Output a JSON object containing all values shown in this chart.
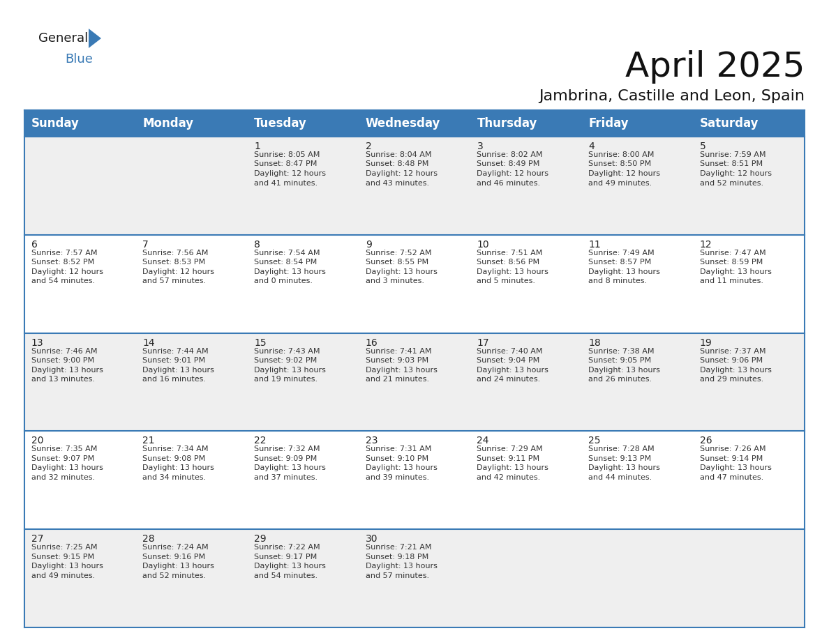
{
  "title": "April 2025",
  "subtitle": "Jambrina, Castille and Leon, Spain",
  "header_color": "#3a7ab5",
  "header_text_color": "#ffffff",
  "cell_bg_row0": "#efefef",
  "cell_bg_row1": "#ffffff",
  "cell_bg_row2": "#efefef",
  "cell_bg_row3": "#ffffff",
  "cell_bg_row4": "#efefef",
  "separator_color": "#3a7ab5",
  "day_headers": [
    "Sunday",
    "Monday",
    "Tuesday",
    "Wednesday",
    "Thursday",
    "Friday",
    "Saturday"
  ],
  "title_fontsize": 36,
  "subtitle_fontsize": 16,
  "header_fontsize": 12,
  "cell_fontsize": 8.0,
  "day_num_fontsize": 10,
  "background_color": "#ffffff",
  "text_color": "#333333",
  "days": [
    {
      "day": null,
      "col": 0,
      "row": 0,
      "sunrise": null,
      "sunset": null,
      "daylight": null
    },
    {
      "day": null,
      "col": 1,
      "row": 0,
      "sunrise": null,
      "sunset": null,
      "daylight": null
    },
    {
      "day": 1,
      "col": 2,
      "row": 0,
      "sunrise": "8:05 AM",
      "sunset": "8:47 PM",
      "daylight": "12 hours and 41 minutes."
    },
    {
      "day": 2,
      "col": 3,
      "row": 0,
      "sunrise": "8:04 AM",
      "sunset": "8:48 PM",
      "daylight": "12 hours and 43 minutes."
    },
    {
      "day": 3,
      "col": 4,
      "row": 0,
      "sunrise": "8:02 AM",
      "sunset": "8:49 PM",
      "daylight": "12 hours and 46 minutes."
    },
    {
      "day": 4,
      "col": 5,
      "row": 0,
      "sunrise": "8:00 AM",
      "sunset": "8:50 PM",
      "daylight": "12 hours and 49 minutes."
    },
    {
      "day": 5,
      "col": 6,
      "row": 0,
      "sunrise": "7:59 AM",
      "sunset": "8:51 PM",
      "daylight": "12 hours and 52 minutes."
    },
    {
      "day": 6,
      "col": 0,
      "row": 1,
      "sunrise": "7:57 AM",
      "sunset": "8:52 PM",
      "daylight": "12 hours and 54 minutes."
    },
    {
      "day": 7,
      "col": 1,
      "row": 1,
      "sunrise": "7:56 AM",
      "sunset": "8:53 PM",
      "daylight": "12 hours and 57 minutes."
    },
    {
      "day": 8,
      "col": 2,
      "row": 1,
      "sunrise": "7:54 AM",
      "sunset": "8:54 PM",
      "daylight": "13 hours and 0 minutes."
    },
    {
      "day": 9,
      "col": 3,
      "row": 1,
      "sunrise": "7:52 AM",
      "sunset": "8:55 PM",
      "daylight": "13 hours and 3 minutes."
    },
    {
      "day": 10,
      "col": 4,
      "row": 1,
      "sunrise": "7:51 AM",
      "sunset": "8:56 PM",
      "daylight": "13 hours and 5 minutes."
    },
    {
      "day": 11,
      "col": 5,
      "row": 1,
      "sunrise": "7:49 AM",
      "sunset": "8:57 PM",
      "daylight": "13 hours and 8 minutes."
    },
    {
      "day": 12,
      "col": 6,
      "row": 1,
      "sunrise": "7:47 AM",
      "sunset": "8:59 PM",
      "daylight": "13 hours and 11 minutes."
    },
    {
      "day": 13,
      "col": 0,
      "row": 2,
      "sunrise": "7:46 AM",
      "sunset": "9:00 PM",
      "daylight": "13 hours and 13 minutes."
    },
    {
      "day": 14,
      "col": 1,
      "row": 2,
      "sunrise": "7:44 AM",
      "sunset": "9:01 PM",
      "daylight": "13 hours and 16 minutes."
    },
    {
      "day": 15,
      "col": 2,
      "row": 2,
      "sunrise": "7:43 AM",
      "sunset": "9:02 PM",
      "daylight": "13 hours and 19 minutes."
    },
    {
      "day": 16,
      "col": 3,
      "row": 2,
      "sunrise": "7:41 AM",
      "sunset": "9:03 PM",
      "daylight": "13 hours and 21 minutes."
    },
    {
      "day": 17,
      "col": 4,
      "row": 2,
      "sunrise": "7:40 AM",
      "sunset": "9:04 PM",
      "daylight": "13 hours and 24 minutes."
    },
    {
      "day": 18,
      "col": 5,
      "row": 2,
      "sunrise": "7:38 AM",
      "sunset": "9:05 PM",
      "daylight": "13 hours and 26 minutes."
    },
    {
      "day": 19,
      "col": 6,
      "row": 2,
      "sunrise": "7:37 AM",
      "sunset": "9:06 PM",
      "daylight": "13 hours and 29 minutes."
    },
    {
      "day": 20,
      "col": 0,
      "row": 3,
      "sunrise": "7:35 AM",
      "sunset": "9:07 PM",
      "daylight": "13 hours and 32 minutes."
    },
    {
      "day": 21,
      "col": 1,
      "row": 3,
      "sunrise": "7:34 AM",
      "sunset": "9:08 PM",
      "daylight": "13 hours and 34 minutes."
    },
    {
      "day": 22,
      "col": 2,
      "row": 3,
      "sunrise": "7:32 AM",
      "sunset": "9:09 PM",
      "daylight": "13 hours and 37 minutes."
    },
    {
      "day": 23,
      "col": 3,
      "row": 3,
      "sunrise": "7:31 AM",
      "sunset": "9:10 PM",
      "daylight": "13 hours and 39 minutes."
    },
    {
      "day": 24,
      "col": 4,
      "row": 3,
      "sunrise": "7:29 AM",
      "sunset": "9:11 PM",
      "daylight": "13 hours and 42 minutes."
    },
    {
      "day": 25,
      "col": 5,
      "row": 3,
      "sunrise": "7:28 AM",
      "sunset": "9:13 PM",
      "daylight": "13 hours and 44 minutes."
    },
    {
      "day": 26,
      "col": 6,
      "row": 3,
      "sunrise": "7:26 AM",
      "sunset": "9:14 PM",
      "daylight": "13 hours and 47 minutes."
    },
    {
      "day": 27,
      "col": 0,
      "row": 4,
      "sunrise": "7:25 AM",
      "sunset": "9:15 PM",
      "daylight": "13 hours and 49 minutes."
    },
    {
      "day": 28,
      "col": 1,
      "row": 4,
      "sunrise": "7:24 AM",
      "sunset": "9:16 PM",
      "daylight": "13 hours and 52 minutes."
    },
    {
      "day": 29,
      "col": 2,
      "row": 4,
      "sunrise": "7:22 AM",
      "sunset": "9:17 PM",
      "daylight": "13 hours and 54 minutes."
    },
    {
      "day": 30,
      "col": 3,
      "row": 4,
      "sunrise": "7:21 AM",
      "sunset": "9:18 PM",
      "daylight": "13 hours and 57 minutes."
    },
    {
      "day": null,
      "col": 4,
      "row": 4,
      "sunrise": null,
      "sunset": null,
      "daylight": null
    },
    {
      "day": null,
      "col": 5,
      "row": 4,
      "sunrise": null,
      "sunset": null,
      "daylight": null
    },
    {
      "day": null,
      "col": 6,
      "row": 4,
      "sunrise": null,
      "sunset": null,
      "daylight": null
    }
  ]
}
